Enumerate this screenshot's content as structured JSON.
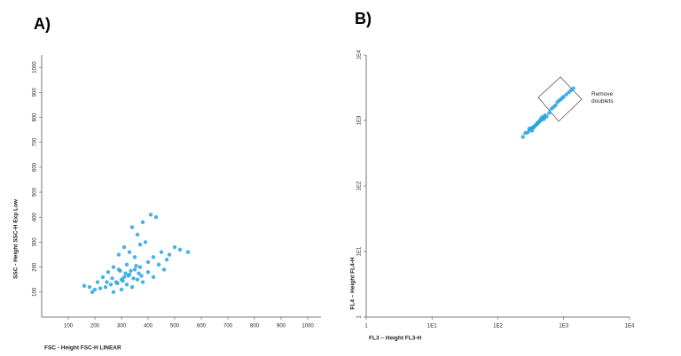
{
  "chart_data": [
    {
      "type": "scatter",
      "title": "A)",
      "xlabel": "FSC - Height FSC-H LINEAR",
      "ylabel": "SSC - Height SSC-H Exp Low",
      "color": "#29a3e3",
      "x": [
        330,
        300,
        280,
        350,
        370,
        310,
        260,
        240,
        220,
        200,
        180,
        160,
        400,
        420,
        450,
        480,
        500,
        520,
        550,
        390,
        360,
        340,
        380,
        410,
        430,
        310,
        290,
        270,
        250,
        230,
        340,
        380,
        420,
        460,
        300,
        270,
        320,
        350,
        400,
        360,
        320,
        290,
        440,
        470,
        210,
        190,
        330,
        370,
        315,
        335,
        345,
        325,
        305,
        285,
        355,
        365,
        375,
        295,
        265,
        245
      ],
      "values": [
        170,
        150,
        140,
        190,
        200,
        160,
        130,
        120,
        115,
        110,
        120,
        125,
        220,
        240,
        260,
        250,
        280,
        270,
        260,
        300,
        330,
        360,
        380,
        410,
        400,
        280,
        250,
        200,
        180,
        160,
        120,
        140,
        160,
        190,
        110,
        100,
        210,
        240,
        180,
        150,
        130,
        190,
        210,
        230,
        140,
        100,
        260,
        290,
        175,
        185,
        155,
        165,
        145,
        135,
        205,
        175,
        165,
        185,
        155,
        140
      ],
      "xlim": [
        0,
        1050
      ],
      "ylim": [
        0,
        1050
      ],
      "xticks": [
        100,
        200,
        300,
        400,
        500,
        600,
        700,
        800,
        900,
        1000
      ],
      "yticks": [
        100,
        200,
        300,
        400,
        500,
        600,
        700,
        800,
        900,
        1000
      ]
    },
    {
      "type": "scatter",
      "title": "B)",
      "xlabel": "FL3 – Height FL3-H",
      "ylabel": "FL4 – Height FL4-H",
      "color": "#29a3e3",
      "log": true,
      "annotation": "Remove doublets",
      "x": [
        240,
        260,
        280,
        300,
        320,
        340,
        360,
        380,
        400,
        420,
        450,
        480,
        500,
        520,
        550,
        600,
        650,
        700,
        750,
        800,
        850,
        900,
        950,
        1000,
        1100,
        1200,
        1300,
        1400,
        300,
        350,
        400,
        450,
        500,
        330,
        390,
        430,
        470
      ],
      "values": [
        560,
        640,
        650,
        700,
        760,
        780,
        820,
        850,
        920,
        950,
        1000,
        1050,
        1100,
        1200,
        1150,
        1300,
        1500,
        1600,
        1700,
        1900,
        2000,
        2100,
        2200,
        2300,
        2500,
        2700,
        2900,
        3100,
        750,
        780,
        900,
        1050,
        1050,
        700,
        880,
        980,
        1120
      ],
      "xlim": [
        1,
        10000
      ],
      "ylim": [
        1,
        10000
      ],
      "xticks": [
        1,
        {
          "value": 10,
          "label": "1E1"
        },
        {
          "value": 100,
          "label": "1E2"
        },
        {
          "value": 1000,
          "label": "1E3"
        },
        {
          "value": 10000,
          "label": "1E4"
        }
      ],
      "yticks": [
        1,
        {
          "value": 10,
          "label": "1E1"
        },
        {
          "value": 100,
          "label": "1E2"
        },
        {
          "value": 1000,
          "label": "1E3"
        },
        {
          "value": 10000,
          "label": "1E4"
        }
      ]
    }
  ]
}
